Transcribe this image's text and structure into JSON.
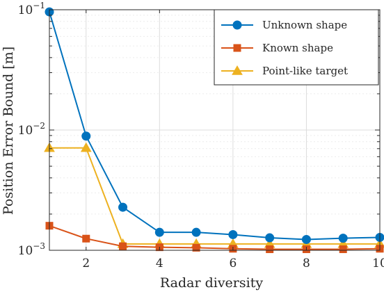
{
  "chart_data": {
    "type": "line",
    "title": "",
    "xlabel": "Radar diversity",
    "ylabel": "Position Error Bound [m]",
    "xlim": [
      1,
      10
    ],
    "ylim": [
      0.001,
      0.1
    ],
    "y_scale": "log",
    "grid": true,
    "legend_position": "top-right",
    "x_ticks": [
      2,
      4,
      6,
      8,
      10
    ],
    "y_tick_labels": [
      {
        "base": "10",
        "exp": "−1",
        "value": 0.1
      },
      {
        "base": "10",
        "exp": "−2",
        "value": 0.01
      },
      {
        "base": "10",
        "exp": "−3",
        "value": 0.001
      }
    ],
    "x": [
      1,
      2,
      3,
      4,
      5,
      6,
      7,
      8,
      9,
      10
    ],
    "series": [
      {
        "name": "Unknown shape",
        "color": "#0072BD",
        "marker": "circle",
        "values": [
          0.096,
          0.0089,
          0.00228,
          0.00141,
          0.00141,
          0.00135,
          0.00127,
          0.00123,
          0.00126,
          0.00128
        ]
      },
      {
        "name": "Known shape",
        "color": "#D95319",
        "marker": "square",
        "values": [
          0.0016,
          0.00125,
          0.00108,
          0.00106,
          0.00105,
          0.00103,
          0.00102,
          0.00102,
          0.00102,
          0.00103
        ]
      },
      {
        "name": "Point-like target",
        "color": "#EDB120",
        "marker": "triangle",
        "values": [
          0.0071,
          0.0071,
          0.00113,
          0.00113,
          0.00113,
          0.00113,
          0.00113,
          0.00113,
          0.00113,
          0.00113
        ]
      }
    ]
  }
}
